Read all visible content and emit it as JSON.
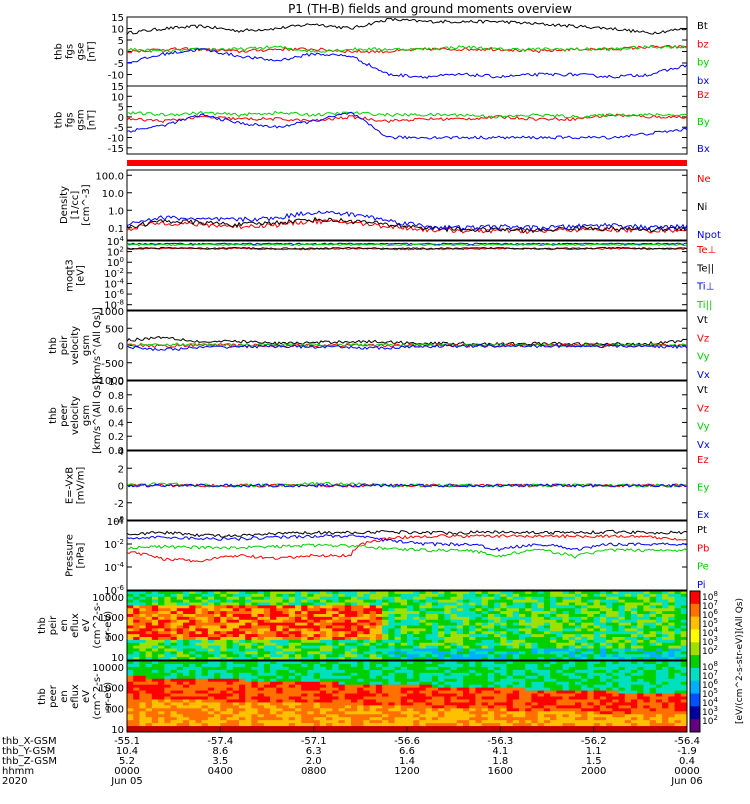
{
  "title": "P1 (TH-B) fields and ground moments overview",
  "colors": {
    "black": "#000000",
    "red": "#ff0000",
    "green": "#00d000",
    "blue": "#0000ff"
  },
  "chart_data": [
    {
      "type": "line",
      "ylabel": [
        "thb",
        "fgs",
        "gse",
        "[nT]"
      ],
      "ylim": [
        -15,
        15
      ],
      "ticks": [
        15,
        10,
        5,
        0,
        -5,
        -10
      ],
      "series": [
        {
          "name": "Bt",
          "color": "black",
          "values": [
            8,
            10,
            11,
            9,
            10,
            12,
            10,
            14,
            13,
            13,
            13,
            12,
            11,
            10,
            8,
            10
          ]
        },
        {
          "name": "bz",
          "color": "red",
          "values": [
            0,
            1,
            1,
            0,
            1,
            1,
            0,
            0,
            1,
            1,
            1,
            0,
            1,
            1,
            2,
            2
          ]
        },
        {
          "name": "by",
          "color": "green",
          "values": [
            1,
            0,
            1,
            1,
            2,
            0,
            1,
            1,
            1,
            2,
            1,
            1,
            1,
            1,
            2,
            2
          ]
        },
        {
          "name": "bx",
          "color": "blue",
          "values": [
            -5,
            -1,
            1,
            -2,
            -4,
            -1,
            -2,
            -10,
            -11,
            -10,
            -11,
            -10,
            -10,
            -11,
            -10,
            -6
          ]
        }
      ]
    },
    {
      "type": "line",
      "ylabel": [
        "thb",
        "fgs",
        "gsm",
        "[nT]"
      ],
      "ylim": [
        -18,
        15
      ],
      "ticks": [
        15,
        10,
        5,
        0,
        -5,
        -10,
        -15
      ],
      "series": [
        {
          "name": "Bz",
          "color": "red",
          "values": [
            -1,
            -2,
            0,
            -1,
            -1,
            -2,
            0,
            -2,
            -1,
            -1,
            0,
            -1,
            -1,
            1,
            0,
            0
          ]
        },
        {
          "name": "By",
          "color": "green",
          "values": [
            2,
            1,
            2,
            1,
            2,
            1,
            2,
            1,
            1,
            1,
            0,
            1,
            0,
            1,
            1,
            1
          ]
        },
        {
          "name": "Bx",
          "color": "blue",
          "values": [
            -7,
            -4,
            1,
            -3,
            -5,
            -2,
            2,
            -10,
            -10,
            -10,
            -10,
            -10,
            -10,
            -10,
            -8,
            -6
          ]
        }
      ]
    },
    {
      "type": "line",
      "ylabel": [
        "Density",
        "[1/cc]",
        "[cm^-3]"
      ],
      "ylim": [
        0.02,
        200
      ],
      "scale": "log",
      "ticks": [
        100.0,
        10.0,
        1.0,
        0.1
      ],
      "tick_labels": [
        "100.0",
        "10.0",
        "1.0",
        "0.1"
      ],
      "series": [
        {
          "name": "Ne",
          "color": "red",
          "values": [
            0.08,
            0.2,
            0.15,
            0.12,
            0.15,
            0.25,
            0.2,
            0.12,
            0.08,
            0.07,
            0.07,
            0.06,
            0.08,
            0.08,
            0.07,
            0.08
          ]
        },
        {
          "name": "Ni",
          "color": "black",
          "values": [
            0.1,
            0.25,
            0.2,
            0.15,
            0.2,
            0.3,
            0.25,
            0.15,
            0.1,
            0.08,
            0.08,
            0.07,
            0.1,
            0.09,
            0.08,
            0.1
          ]
        },
        {
          "name": "Npot",
          "color": "blue",
          "values": [
            0.15,
            0.4,
            0.3,
            0.3,
            0.35,
            0.8,
            0.6,
            0.25,
            0.12,
            0.1,
            0.12,
            0.1,
            0.12,
            0.15,
            0.1,
            0.12
          ]
        }
      ]
    },
    {
      "type": "line",
      "ylabel": [
        "moqt3",
        "[eV]"
      ],
      "ylim": [
        1e-09,
        10000.0
      ],
      "scale": "log",
      "ticks": [
        10000,
        100,
        1,
        0.01,
        0.0001,
        1e-06,
        1e-08
      ],
      "tick_labels": [
        "10^4",
        "10^2",
        "10^0",
        "10^-2",
        "10^-4",
        "10^-6",
        "10^-8"
      ],
      "series": [
        {
          "name": "Te⊥",
          "color": "red",
          "values": [
            300,
            400,
            300,
            400,
            300,
            300,
            400,
            300,
            300,
            300,
            400,
            300,
            300,
            400,
            300,
            300
          ]
        },
        {
          "name": "Te||",
          "color": "black",
          "values": [
            400,
            500,
            400,
            500,
            400,
            400,
            500,
            400,
            400,
            400,
            500,
            400,
            400,
            500,
            400,
            400
          ]
        },
        {
          "name": "Ti⊥",
          "color": "blue",
          "values": [
            3000,
            3000,
            3000,
            3000,
            3000,
            3000,
            3000,
            3000,
            3000,
            3000,
            3000,
            3000,
            3000,
            3000,
            3000,
            3000
          ]
        },
        {
          "name": "Ti||",
          "color": "green",
          "values": [
            2000,
            2000,
            2000,
            2000,
            2000,
            2000,
            2000,
            2000,
            2000,
            2000,
            2000,
            2000,
            2000,
            2000,
            2000,
            2000
          ]
        }
      ]
    },
    {
      "type": "line",
      "ylabel": [
        "thb",
        "peir",
        "velocity",
        "gsm",
        "[km/s^(All Qs)]"
      ],
      "ylim": [
        -1000,
        1000
      ],
      "ticks": [
        1000,
        500,
        0,
        -500,
        -1000
      ],
      "tick_labels": [
        "1000",
        "500",
        "0",
        "-500",
        "-1000"
      ],
      "series": [
        {
          "name": "Vt",
          "color": "black",
          "values": [
            150,
            250,
            100,
            120,
            60,
            80,
            120,
            100,
            60,
            60,
            40,
            60,
            40,
            40,
            60,
            150
          ]
        },
        {
          "name": "Vz",
          "color": "red",
          "values": [
            0,
            -20,
            10,
            0,
            10,
            0,
            10,
            0,
            10,
            0,
            0,
            10,
            0,
            10,
            0,
            0
          ]
        },
        {
          "name": "Vy",
          "color": "green",
          "values": [
            10,
            40,
            20,
            10,
            20,
            10,
            20,
            20,
            10,
            20,
            10,
            0,
            10,
            10,
            20,
            20
          ]
        },
        {
          "name": "Vx",
          "color": "blue",
          "values": [
            -50,
            -120,
            -60,
            -30,
            -20,
            -40,
            -60,
            -80,
            -20,
            -20,
            -10,
            -20,
            -10,
            -20,
            -20,
            -40
          ]
        }
      ]
    },
    {
      "type": "line",
      "ylabel": [
        "thb",
        "peer",
        "velocity",
        "gsm",
        "[km/s^(All Qs)]"
      ],
      "ylim": [
        0,
        1.0
      ],
      "ticks": [
        1.0,
        0.8,
        0.6,
        0.4,
        0.2,
        0.0
      ],
      "tick_labels": [
        "1.0",
        "0.8",
        "0.6",
        "0.4",
        "0.2",
        "0.0"
      ],
      "series": [
        {
          "name": "Vt",
          "color": "black",
          "values": []
        },
        {
          "name": "Vz",
          "color": "red",
          "values": []
        },
        {
          "name": "Vy",
          "color": "green",
          "values": []
        },
        {
          "name": "Vx",
          "color": "blue",
          "values": []
        }
      ]
    },
    {
      "type": "line",
      "ylabel": [
        "E=-VxB",
        "[mV/m]"
      ],
      "ylim": [
        -4,
        4
      ],
      "ticks": [
        4,
        2,
        0,
        -2,
        -4
      ],
      "series": [
        {
          "name": "Ez",
          "color": "red",
          "values": [
            0,
            0,
            0,
            0,
            0,
            0,
            0,
            0,
            0,
            0,
            0,
            0,
            0,
            0,
            0,
            0
          ]
        },
        {
          "name": "Ey",
          "color": "green",
          "values": [
            0,
            0.2,
            0,
            0,
            0,
            0.2,
            0.2,
            0,
            0,
            0,
            0,
            0,
            0,
            0,
            0,
            0
          ]
        },
        {
          "name": "Ex",
          "color": "blue",
          "values": [
            0,
            0,
            0,
            0,
            0,
            0,
            0,
            0,
            0,
            0,
            0,
            0,
            0,
            0,
            0,
            0
          ]
        }
      ]
    },
    {
      "type": "line",
      "ylabel": [
        "Pressure",
        "[nPa]"
      ],
      "ylim": [
        1e-06,
        1
      ],
      "scale": "log",
      "ticks": [
        1,
        0.01,
        0.0001,
        1e-06
      ],
      "tick_labels": [
        "10^0",
        "10^-2",
        "10^-4",
        "10^-6"
      ],
      "series": [
        {
          "name": "Pt",
          "color": "black",
          "values": [
            0.08,
            0.1,
            0.06,
            0.05,
            0.08,
            0.1,
            0.1,
            0.12,
            0.1,
            0.1,
            0.12,
            0.1,
            0.1,
            0.12,
            0.1,
            0.1
          ]
        },
        {
          "name": "Pb",
          "color": "red",
          "values": [
            0.002,
            0.0005,
            0.0003,
            0.001,
            0.0005,
            0.001,
            0.001,
            0.03,
            0.05,
            0.05,
            0.05,
            0.05,
            0.05,
            0.05,
            0.04,
            0.02
          ]
        },
        {
          "name": "Pe",
          "color": "green",
          "values": [
            0.005,
            0.006,
            0.005,
            0.005,
            0.006,
            0.008,
            0.007,
            0.004,
            0.003,
            0.003,
            0.0008,
            0.003,
            0.0008,
            0.003,
            0.003,
            0.003
          ]
        },
        {
          "name": "Pi",
          "color": "blue",
          "values": [
            0.03,
            0.04,
            0.03,
            0.03,
            0.04,
            0.05,
            0.05,
            0.02,
            0.01,
            0.01,
            0.003,
            0.01,
            0.003,
            0.01,
            0.01,
            0.01
          ]
        }
      ]
    },
    {
      "type": "heatmap",
      "ylabel": [
        "thb",
        "peir",
        "en",
        "eflux",
        "eV",
        "(cm^2-s-",
        "sr-eV)"
      ],
      "ylim": [
        7,
        20000
      ],
      "scale": "log",
      "ticks": [
        10000,
        1000,
        100,
        10
      ],
      "tick_labels": [
        "10000",
        "1000",
        "100",
        "10"
      ]
    },
    {
      "type": "heatmap",
      "ylabel": [
        "thb",
        "peer",
        "en",
        "eflux",
        "eV",
        "(cm^2-s-",
        "sr-eV)"
      ],
      "ylim": [
        7,
        20000
      ],
      "scale": "log",
      "ticks": [
        10000,
        1000,
        100,
        10
      ],
      "tick_labels": [
        "10000",
        "1000",
        "100",
        "10"
      ]
    }
  ],
  "colorbar": {
    "label": "[eV/(cm^2-s-str-eV)](All Qs)",
    "top_tick_labels": [
      "10^8",
      "10^7",
      "10^6",
      "10^5",
      "10^4",
      "10^3",
      "10^2"
    ],
    "bottom_tick_labels": [
      "10^8",
      "10^7",
      "10^6",
      "10^5",
      "10^4",
      "10^3",
      "10^2"
    ]
  },
  "x_axis": {
    "labels": [
      "thb_X-GSM",
      "thb_Y-GSM",
      "thb_Z-GSM",
      "hhmm",
      "2020"
    ],
    "columns": [
      {
        "values": [
          "-55.1",
          "10.4",
          "5.2",
          "0000",
          "Jun 05"
        ]
      },
      {
        "values": [
          "-57.4",
          "8.6",
          "3.5",
          "0400",
          ""
        ]
      },
      {
        "values": [
          "-57.1",
          "6.3",
          "2.0",
          "0800",
          ""
        ]
      },
      {
        "values": [
          "-56.6",
          "6.6",
          "1.4",
          "1200",
          ""
        ]
      },
      {
        "values": [
          "-56.3",
          "4.1",
          "1.8",
          "1600",
          ""
        ]
      },
      {
        "values": [
          "-56.2",
          "1.1",
          "1.5",
          "2000",
          ""
        ]
      },
      {
        "values": [
          "-56.4",
          "-1.9",
          "0.4",
          "0000",
          "Jun 06"
        ]
      }
    ]
  }
}
